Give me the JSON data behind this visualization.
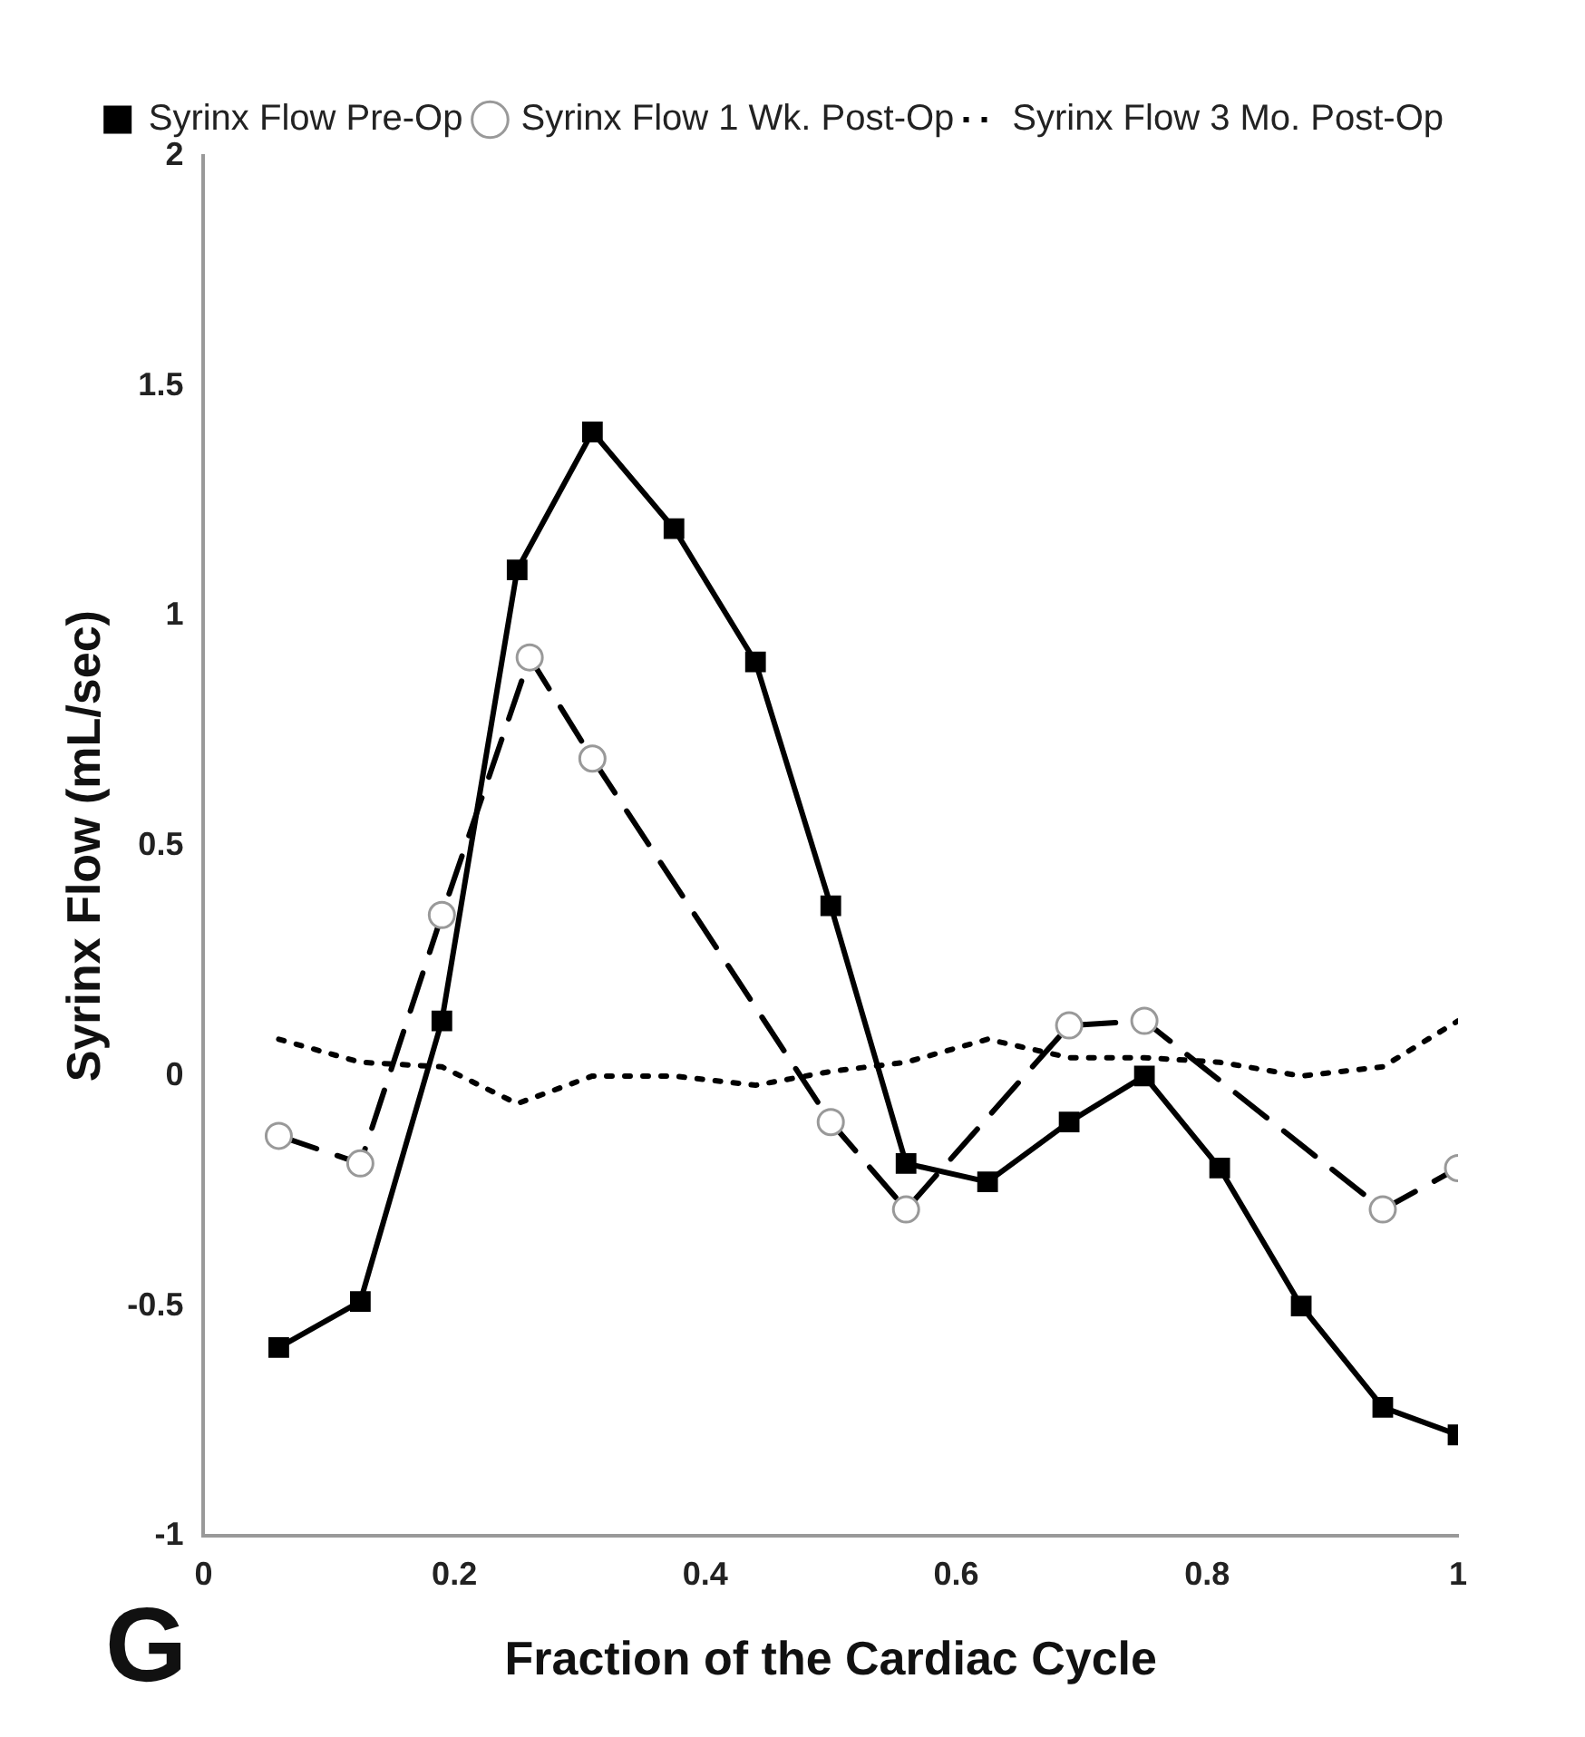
{
  "chart_data": {
    "type": "line",
    "xlabel": "Fraction of the Cardiac Cycle",
    "ylabel": "Syrinx Flow (mL/sec)",
    "annotations": [
      "G"
    ],
    "xlim": [
      0,
      1
    ],
    "xticks": [
      0,
      0.2,
      0.4,
      0.6,
      0.8,
      1
    ],
    "ylim": [
      -1,
      2
    ],
    "yticks": [
      -1,
      -0.5,
      0,
      0.5,
      1,
      1.5,
      2
    ],
    "grid": false,
    "legend": "top right",
    "series": [
      {
        "name": "Syrinx Flow Pre-Op",
        "color": "#000000",
        "marker": "square",
        "line_style": "solid",
        "x": [
          0.06,
          0.125,
          0.19,
          0.25,
          0.31,
          0.375,
          0.44,
          0.5,
          0.56,
          0.625,
          0.69,
          0.75,
          0.81,
          0.875,
          0.94,
          1.0
        ],
        "values": [
          -0.59,
          -0.49,
          0.12,
          1.1,
          1.4,
          1.19,
          0.9,
          0.37,
          -0.19,
          -0.23,
          -0.1,
          0.0,
          -0.2,
          -0.5,
          -0.72,
          -0.78
        ]
      },
      {
        "name": "Syrinx Flow 1 Wk. Post-Op",
        "color": "#000000",
        "marker": "circle",
        "line_style": "dashed",
        "x": [
          0.06,
          0.125,
          0.19,
          0.26,
          0.31,
          0.5,
          0.56,
          0.69,
          0.75,
          0.94,
          1.0
        ],
        "values": [
          -0.13,
          -0.19,
          0.35,
          0.91,
          0.69,
          -0.1,
          -0.29,
          0.11,
          0.12,
          -0.29,
          -0.2
        ]
      },
      {
        "name": "Syrinx Flow 3 Mo. Post-Op",
        "color": "#000000",
        "marker": "none",
        "line_style": "dotted",
        "x": [
          0.06,
          0.125,
          0.19,
          0.25,
          0.31,
          0.375,
          0.44,
          0.5,
          0.56,
          0.625,
          0.69,
          0.75,
          0.81,
          0.875,
          0.94,
          1.0
        ],
        "values": [
          0.08,
          0.03,
          0.02,
          -0.06,
          0.0,
          0.0,
          -0.02,
          0.01,
          0.03,
          0.08,
          0.04,
          0.04,
          0.03,
          0.0,
          0.02,
          0.12
        ]
      }
    ]
  }
}
